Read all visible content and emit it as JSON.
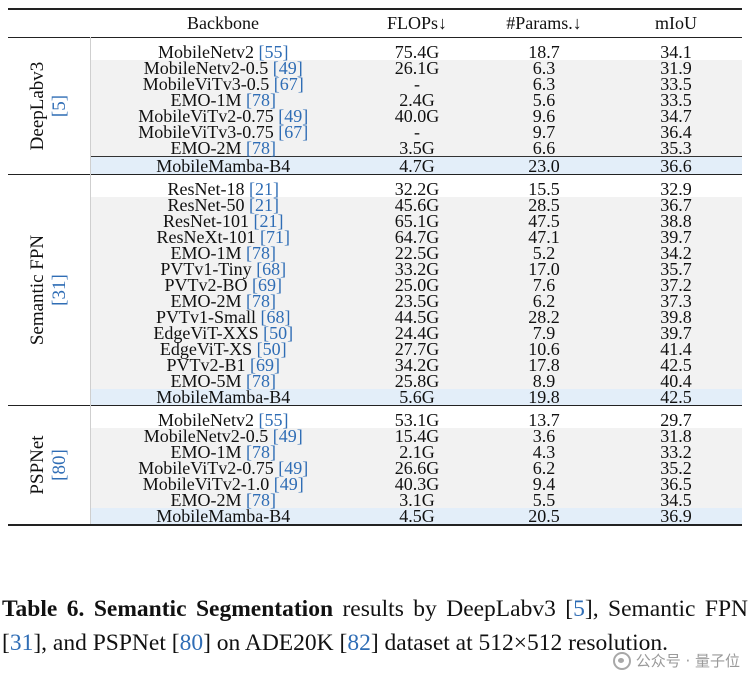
{
  "header": {
    "backbone": "Backbone",
    "flops": "FLOPs↓",
    "params": "#Params.↓",
    "miou": "mIoU"
  },
  "groups": [
    {
      "label": "DeepLabv3",
      "cite": "[5]",
      "rows": [
        {
          "backbone": "MobileNetv2",
          "ref": "[55]",
          "flops": "75.4G",
          "params": "18.7",
          "miou": "34.1"
        },
        {
          "backbone": "MobileNetv2-0.5",
          "ref": "[49]",
          "flops": "26.1G",
          "params": "6.3",
          "miou": "31.9"
        },
        {
          "backbone": "MobileViTv3-0.5",
          "ref": "[67]",
          "flops": "-",
          "params": "6.3",
          "miou": "33.5"
        },
        {
          "backbone": "EMO-1M",
          "ref": "[78]",
          "flops": "2.4G",
          "params": "5.6",
          "miou": "33.5"
        },
        {
          "backbone": "MobileViTv2-0.75",
          "ref": "[49]",
          "flops": "40.0G",
          "params": "9.6",
          "miou": "34.7"
        },
        {
          "backbone": "MobileViTv3-0.75",
          "ref": "[67]",
          "flops": "-",
          "params": "9.7",
          "miou": "36.4"
        },
        {
          "backbone": "EMO-2M",
          "ref": "[78]",
          "flops": "3.5G",
          "params": "6.6",
          "miou": "35.3"
        },
        {
          "backbone": "MobileMamba-B4",
          "ref": "",
          "flops": "4.7G",
          "params": "23.0",
          "miou": "36.6"
        }
      ]
    },
    {
      "label": "Semantic FPN",
      "cite": "[31]",
      "rows": [
        {
          "backbone": "ResNet-18",
          "ref": "[21]",
          "flops": "32.2G",
          "params": "15.5",
          "miou": "32.9"
        },
        {
          "backbone": "ResNet-50",
          "ref": "[21]",
          "flops": "45.6G",
          "params": "28.5",
          "miou": "36.7"
        },
        {
          "backbone": "ResNet-101",
          "ref": "[21]",
          "flops": "65.1G",
          "params": "47.5",
          "miou": "38.8"
        },
        {
          "backbone": "ResNeXt-101",
          "ref": "[71]",
          "flops": "64.7G",
          "params": "47.1",
          "miou": "39.7"
        },
        {
          "backbone": "EMO-1M",
          "ref": "[78]",
          "flops": "22.5G",
          "params": "5.2",
          "miou": "34.2"
        },
        {
          "backbone": "PVTv1-Tiny",
          "ref": "[68]",
          "flops": "33.2G",
          "params": "17.0",
          "miou": "35.7"
        },
        {
          "backbone": "PVTv2-BO",
          "ref": "[69]",
          "flops": "25.0G",
          "params": "7.6",
          "miou": "37.2"
        },
        {
          "backbone": "EMO-2M",
          "ref": "[78]",
          "flops": "23.5G",
          "params": "6.2",
          "miou": "37.3"
        },
        {
          "backbone": "PVTv1-Small",
          "ref": "[68]",
          "flops": "44.5G",
          "params": "28.2",
          "miou": "39.8"
        },
        {
          "backbone": "EdgeViT-XXS",
          "ref": "[50]",
          "flops": "24.4G",
          "params": "7.9",
          "miou": "39.7"
        },
        {
          "backbone": "EdgeViT-XS",
          "ref": "[50]",
          "flops": "27.7G",
          "params": "10.6",
          "miou": "41.4"
        },
        {
          "backbone": "PVTv2-B1",
          "ref": "[69]",
          "flops": "34.2G",
          "params": "17.8",
          "miou": "42.5"
        },
        {
          "backbone": "EMO-5M",
          "ref": "[78]",
          "flops": "25.8G",
          "params": "8.9",
          "miou": "40.4"
        },
        {
          "backbone": "MobileMamba-B4",
          "ref": "",
          "flops": "5.6G",
          "params": "19.8",
          "miou": "42.5"
        }
      ]
    },
    {
      "label": "PSPNet",
      "cite": "[80]",
      "rows": [
        {
          "backbone": "MobileNetv2",
          "ref": "[55]",
          "flops": "53.1G",
          "params": "13.7",
          "miou": "29.7"
        },
        {
          "backbone": "MobileNetv2-0.5",
          "ref": "[49]",
          "flops": "15.4G",
          "params": "3.6",
          "miou": "31.8"
        },
        {
          "backbone": "EMO-1M",
          "ref": "[78]",
          "flops": "2.1G",
          "params": "4.3",
          "miou": "33.2"
        },
        {
          "backbone": "MobileViTv2-0.75",
          "ref": "[49]",
          "flops": "26.6G",
          "params": "6.2",
          "miou": "35.2"
        },
        {
          "backbone": "MobileViTv2-1.0",
          "ref": "[49]",
          "flops": "40.3G",
          "params": "9.4",
          "miou": "36.5"
        },
        {
          "backbone": "EMO-2M",
          "ref": "[78]",
          "flops": "3.1G",
          "params": "5.5",
          "miou": "34.5"
        },
        {
          "backbone": "MobileMamba-B4",
          "ref": "",
          "flops": "4.5G",
          "params": "20.5",
          "miou": "36.9"
        }
      ]
    }
  ],
  "caption": {
    "prefix": "Table 6.",
    "bold": "Semantic Segmentation",
    "t1": "results by DeepLabv3",
    "c1": "5",
    "t2": ", Semantic FPN",
    "c2": "31",
    "t3": ", and PSPNet",
    "c3": "80",
    "t4": "on ADE20K",
    "c4": "82",
    "t5": "dataset at 512×512 resolution."
  },
  "watermark": "公众号 · 量子位",
  "colors": {
    "cite": "#2f6db5",
    "highlight": "#e3eef9",
    "shade": "#f2f2f2"
  }
}
